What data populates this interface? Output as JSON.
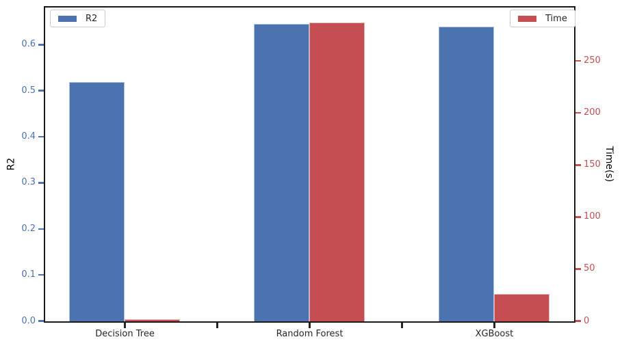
{
  "chart_data": {
    "type": "bar",
    "title": "",
    "categories": [
      "Decision Tree",
      "Random Forest",
      "XGBoost"
    ],
    "series": [
      {
        "name": "R2",
        "axis": "left",
        "color": "#4c72b0",
        "values": [
          0.52,
          0.646,
          0.64
        ]
      },
      {
        "name": "Time",
        "axis": "right",
        "color": "#c44e52",
        "values": [
          2,
          287,
          26
        ]
      }
    ],
    "left_axis": {
      "label": "R2",
      "color": "#4c72b0",
      "range": [
        0,
        0.68
      ],
      "tick_values": [
        0.0,
        0.1,
        0.2,
        0.3,
        0.4,
        0.5,
        0.6
      ],
      "tick_labels": [
        "0.0",
        "0.1",
        "0.2",
        "0.3",
        "0.4",
        "0.5",
        "0.6"
      ]
    },
    "right_axis": {
      "label": "Time(s)",
      "color": "#c44e52",
      "range": [
        0,
        301
      ],
      "tick_values": [
        0,
        50,
        100,
        150,
        200,
        250
      ],
      "tick_labels": [
        "0",
        "50",
        "100",
        "150",
        "200",
        "250"
      ]
    },
    "x_axis": {
      "range": [
        -0.43,
        2.43
      ],
      "category_units": [
        0,
        1,
        2
      ],
      "ticks": [
        {
          "u": 0,
          "label": "Decision Tree"
        },
        {
          "u": 0.5,
          "label": ""
        },
        {
          "u": 1,
          "label": "Random Forest"
        },
        {
          "u": 1.5,
          "label": ""
        },
        {
          "u": 2,
          "label": "XGBoost"
        }
      ],
      "tick_color": "#262626"
    },
    "bar_width_units": 0.3,
    "legend_left": {
      "label": "R2",
      "swatch_color": "#4c72b0"
    },
    "legend_right": {
      "label": "Time",
      "swatch_color": "#c44e52"
    },
    "layout": {
      "grid": false,
      "legend_left_position": "upper left",
      "legend_right_position": "upper right",
      "background": "#ffffff",
      "spine_color": "#1a1a1a"
    }
  }
}
